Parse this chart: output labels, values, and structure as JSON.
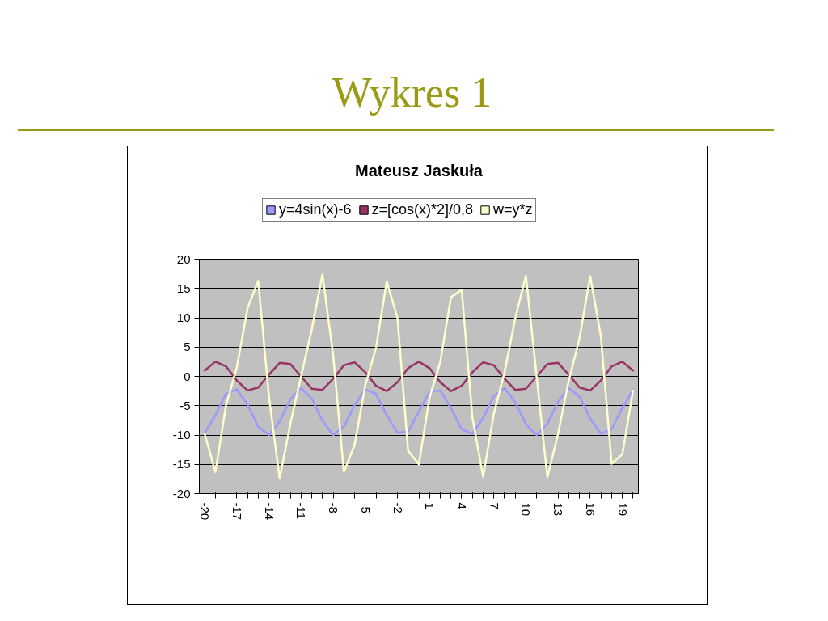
{
  "chart_data": {
    "type": "line",
    "title": "Wykres 1",
    "subtitle": "Mateusz Jaskuła",
    "categories": [
      "-20",
      null,
      null,
      "-17",
      null,
      null,
      "-14",
      null,
      null,
      "-11",
      null,
      null,
      "-8",
      null,
      null,
      "-5",
      null,
      null,
      "-2",
      null,
      null,
      "1",
      null,
      null,
      "4",
      null,
      null,
      "7",
      null,
      null,
      "10",
      null,
      null,
      "13",
      null,
      null,
      "16",
      null,
      null,
      "19",
      null
    ],
    "series": [
      {
        "name": "y=4sin(x)-6",
        "color": "#9999ff",
        "values": [
          -9.7,
          -6.6,
          -3.0,
          -2.2,
          -4.8,
          -8.6,
          -10.0,
          -7.7,
          -3.9,
          -2.0,
          -3.8,
          -7.6,
          -10.0,
          -8.6,
          -4.9,
          -2.2,
          -3.0,
          -6.6,
          -9.6,
          -9.4,
          -6.0,
          -2.6,
          -2.4,
          -5.4,
          -9.0,
          -9.8,
          -7.1,
          -3.4,
          -2.0,
          -4.4,
          -8.2,
          -10.0,
          -8.1,
          -4.3,
          -2.0,
          -3.4,
          -7.2,
          -9.8,
          -9.0,
          -5.4,
          -2.3
        ]
      },
      {
        "name": "z=[cos(x)*2]/0,8",
        "color": "#993366",
        "values": [
          1.0,
          2.5,
          1.7,
          -0.7,
          -2.4,
          -1.9,
          0.3,
          2.3,
          2.1,
          0.0,
          -2.1,
          -2.3,
          -0.4,
          1.9,
          2.4,
          0.7,
          -1.6,
          -2.5,
          -1.0,
          1.4,
          2.5,
          1.4,
          -1.0,
          -2.5,
          -1.6,
          0.7,
          2.4,
          1.9,
          -0.4,
          -2.3,
          -2.1,
          0.0,
          2.1,
          2.3,
          0.3,
          -1.9,
          -2.4,
          -0.7,
          1.7,
          2.5,
          1.0
        ]
      },
      {
        "name": "w=y*z",
        "color": "#ffffcc",
        "values": [
          -9.8,
          -16.3,
          -4.9,
          1.5,
          11.6,
          16.3,
          -3.4,
          -17.4,
          -8.1,
          0.0,
          8.0,
          17.4,
          3.6,
          -16.3,
          -11.7,
          -1.5,
          4.9,
          16.2,
          10.0,
          -12.7,
          -15.0,
          -3.6,
          2.5,
          13.5,
          14.8,
          -7.0,
          -17.1,
          -6.4,
          0.7,
          9.9,
          17.2,
          -0.1,
          -17.2,
          -9.8,
          -0.7,
          6.5,
          17.1,
          6.8,
          -14.9,
          -13.3,
          -2.4
        ]
      }
    ],
    "ylim": [
      -20,
      20
    ],
    "yticks": [
      -20,
      -15,
      -10,
      -5,
      0,
      5,
      10,
      15,
      20
    ],
    "grid": "y",
    "legend": "top"
  }
}
